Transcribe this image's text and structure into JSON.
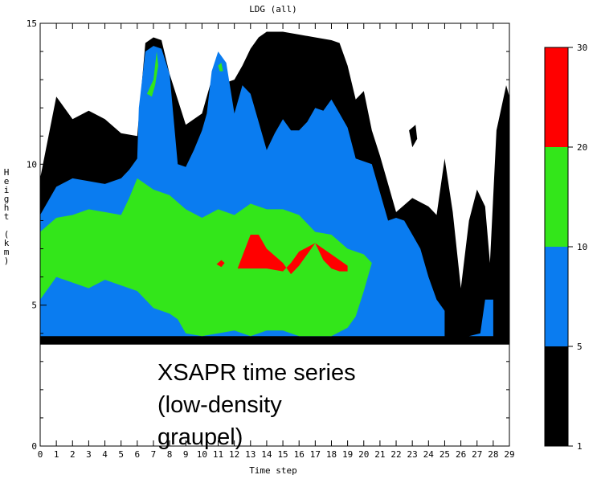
{
  "chart_data": {
    "type": "heatmap",
    "title": "LDG (all)",
    "xlabel": "Time step",
    "ylabel": "Height (km)",
    "x_ticks": [
      "0",
      "1",
      "2",
      "3",
      "4",
      "5",
      "6",
      "7",
      "8",
      "9",
      "10",
      "11",
      "12",
      "13",
      "14",
      "15",
      "16",
      "17",
      "18",
      "19",
      "20",
      "21",
      "22",
      "23",
      "24",
      "25",
      "26",
      "27",
      "28",
      "29"
    ],
    "y_ticks": [
      "0",
      "5",
      "10",
      "15"
    ],
    "xlim": [
      0,
      29
    ],
    "ylim": [
      0,
      15
    ],
    "grid": false,
    "colorbar": {
      "tick_labels": [
        "1",
        "5",
        "10",
        "20",
        "30"
      ],
      "levels": [
        {
          "range": [
            1,
            5
          ],
          "color": "#000000"
        },
        {
          "range": [
            5,
            10
          ],
          "color": "#0a7cf0"
        },
        {
          "range": [
            10,
            20
          ],
          "color": "#33e61a"
        },
        {
          "range": [
            20,
            30
          ],
          "color": "#ff0000"
        }
      ]
    },
    "contours": [
      {
        "level": "1-5",
        "color": "#000000",
        "polygons": [
          [
            [
              0,
              3.6
            ],
            [
              29,
              3.6
            ],
            [
              29,
              12.4
            ],
            [
              28.8,
              12.8
            ],
            [
              28.2,
              11.2
            ],
            [
              27.8,
              6.5
            ],
            [
              27.5,
              8.5
            ],
            [
              27,
              9.1
            ],
            [
              26.5,
              8
            ],
            [
              26,
              5.6
            ],
            [
              25.5,
              8.3
            ],
            [
              25,
              10.2
            ],
            [
              24.5,
              8.2
            ],
            [
              24,
              8.5
            ],
            [
              23,
              8.8
            ],
            [
              22,
              8.3
            ],
            [
              21.5,
              9.3
            ],
            [
              21,
              10.3
            ],
            [
              20.5,
              11.2
            ],
            [
              20,
              12.6
            ],
            [
              19.5,
              12.3
            ],
            [
              19,
              13.5
            ],
            [
              18.5,
              14.3
            ],
            [
              18,
              14.4
            ],
            [
              17,
              14.5
            ],
            [
              16,
              14.6
            ],
            [
              15,
              14.7
            ],
            [
              14,
              14.7
            ],
            [
              13.5,
              14.5
            ],
            [
              13,
              14.1
            ],
            [
              12.5,
              13.5
            ],
            [
              12,
              13
            ],
            [
              11.5,
              12.9
            ],
            [
              11,
              13.3
            ],
            [
              10.5,
              12.8
            ],
            [
              10,
              11.8
            ],
            [
              9,
              11.4
            ],
            [
              8,
              13.2
            ],
            [
              7.5,
              14.4
            ],
            [
              7,
              14.5
            ],
            [
              6.5,
              14.3
            ],
            [
              6,
              11
            ],
            [
              5,
              11.1
            ],
            [
              4,
              11.6
            ],
            [
              3,
              11.9
            ],
            [
              2,
              11.6
            ],
            [
              1,
              12.4
            ],
            [
              0,
              9.5
            ]
          ],
          [
            [
              22.8,
              11.2
            ],
            [
              23.2,
              11.4
            ],
            [
              23.3,
              10.9
            ],
            [
              23,
              10.6
            ]
          ]
        ]
      },
      {
        "level": "5-10",
        "color": "#0a7cf0",
        "polygons": [
          [
            [
              0,
              3.9
            ],
            [
              28,
              3.9
            ],
            [
              28,
              5.2
            ],
            [
              27.5,
              5.2
            ],
            [
              27.2,
              4
            ],
            [
              26.5,
              3.9
            ],
            [
              25,
              3.9
            ],
            [
              25,
              4.8
            ],
            [
              24.5,
              5.2
            ],
            [
              24,
              6
            ],
            [
              23.5,
              7
            ],
            [
              23,
              7.5
            ],
            [
              22.5,
              8
            ],
            [
              22,
              8.1
            ],
            [
              21.5,
              8
            ],
            [
              21,
              9
            ],
            [
              20.5,
              10
            ],
            [
              19.5,
              10.2
            ],
            [
              19,
              11.3
            ],
            [
              18.5,
              11.8
            ],
            [
              18,
              12.3
            ],
            [
              17.5,
              11.9
            ],
            [
              17,
              12
            ],
            [
              16.5,
              11.5
            ],
            [
              16,
              11.2
            ],
            [
              15.5,
              11.2
            ],
            [
              15,
              11.6
            ],
            [
              14.5,
              11.1
            ],
            [
              14,
              10.5
            ],
            [
              13.5,
              11.5
            ],
            [
              13,
              12.5
            ],
            [
              12.5,
              12.8
            ],
            [
              12,
              11.8
            ],
            [
              11.5,
              13.6
            ],
            [
              11,
              14
            ],
            [
              10.6,
              13.3
            ],
            [
              10.3,
              11.8
            ],
            [
              10,
              11.2
            ],
            [
              9.5,
              10.5
            ],
            [
              9,
              9.9
            ],
            [
              8.5,
              10
            ],
            [
              8,
              13.2
            ],
            [
              7.5,
              14.1
            ],
            [
              7,
              14.2
            ],
            [
              6.5,
              14
            ],
            [
              6.1,
              12
            ],
            [
              6,
              10.2
            ],
            [
              5.5,
              9.8
            ],
            [
              5,
              9.5
            ],
            [
              4,
              9.3
            ],
            [
              3,
              9.4
            ],
            [
              2,
              9.5
            ],
            [
              1,
              9.2
            ],
            [
              0,
              8.2
            ]
          ]
        ]
      },
      {
        "level": "10-20",
        "color": "#33e61a",
        "polygons": [
          [
            [
              0,
              5.2
            ],
            [
              1,
              6
            ],
            [
              2,
              5.8
            ],
            [
              3,
              5.6
            ],
            [
              4,
              5.9
            ],
            [
              5,
              5.7
            ],
            [
              6,
              5.5
            ],
            [
              7,
              4.9
            ],
            [
              8,
              4.7
            ],
            [
              8.5,
              4.5
            ],
            [
              9,
              4
            ],
            [
              10,
              3.9
            ],
            [
              11,
              4
            ],
            [
              12,
              4.1
            ],
            [
              13,
              3.9
            ],
            [
              14,
              4.1
            ],
            [
              15,
              4.1
            ],
            [
              16,
              3.9
            ],
            [
              17,
              3.9
            ],
            [
              18,
              3.9
            ],
            [
              19,
              4.2
            ],
            [
              19.5,
              4.6
            ],
            [
              20,
              5.5
            ],
            [
              20.5,
              6.5
            ],
            [
              20,
              6.8
            ],
            [
              19,
              7
            ],
            [
              18,
              7.5
            ],
            [
              17,
              7.6
            ],
            [
              16,
              8.2
            ],
            [
              15,
              8.4
            ],
            [
              14,
              8.4
            ],
            [
              13,
              8.6
            ],
            [
              12,
              8.2
            ],
            [
              11,
              8.4
            ],
            [
              10,
              8.1
            ],
            [
              9,
              8.4
            ],
            [
              8,
              8.9
            ],
            [
              7,
              9.1
            ],
            [
              6,
              9.5
            ],
            [
              5.5,
              8.8
            ],
            [
              5,
              8.2
            ],
            [
              4,
              8.3
            ],
            [
              3,
              8.4
            ],
            [
              2,
              8.2
            ],
            [
              1,
              8.1
            ],
            [
              0,
              7.6
            ]
          ],
          [
            [
              6.6,
              12.5
            ],
            [
              7,
              13
            ],
            [
              7.2,
              14
            ],
            [
              7.3,
              13.5
            ],
            [
              7.1,
              12.8
            ],
            [
              6.9,
              12.4
            ]
          ],
          [
            [
              11,
              13.5
            ],
            [
              11.2,
              13.6
            ],
            [
              11.3,
              13.3
            ],
            [
              11.1,
              13.3
            ]
          ]
        ]
      },
      {
        "level": "20-30",
        "color": "#ff0000",
        "polygons": [
          [
            [
              12.2,
              6.3
            ],
            [
              13,
              7.5
            ],
            [
              13.5,
              7.5
            ],
            [
              14,
              7
            ],
            [
              15,
              6.5
            ],
            [
              15.5,
              6.1
            ],
            [
              16,
              6.4
            ],
            [
              16.5,
              6.8
            ],
            [
              17,
              7.2
            ],
            [
              17.5,
              6.6
            ],
            [
              18,
              6.3
            ],
            [
              18.5,
              6.2
            ],
            [
              19,
              6.2
            ],
            [
              19,
              6.4
            ],
            [
              18,
              6.8
            ],
            [
              17,
              7.2
            ],
            [
              16,
              6.9
            ],
            [
              15.5,
              6.5
            ],
            [
              15,
              6.2
            ],
            [
              14,
              6.3
            ],
            [
              13,
              6.3
            ]
          ],
          [
            [
              10.9,
              6.45
            ],
            [
              11.2,
              6.6
            ],
            [
              11.4,
              6.5
            ],
            [
              11.2,
              6.35
            ]
          ]
        ]
      }
    ]
  },
  "annotation": {
    "lines": [
      "XSAPR time series",
      "(low-density",
      "graupel)"
    ]
  }
}
